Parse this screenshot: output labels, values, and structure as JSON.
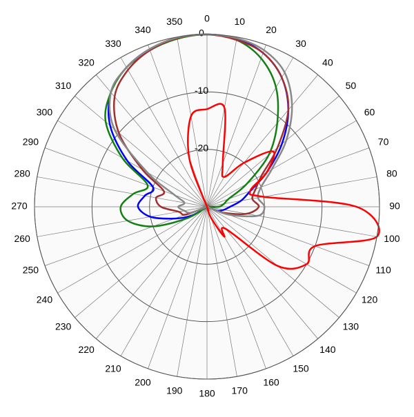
{
  "chart_data": {
    "type": "polar",
    "theta": [
      0,
      10,
      20,
      30,
      40,
      50,
      60,
      70,
      80,
      90,
      100,
      110,
      120,
      130,
      140,
      150,
      160,
      170,
      180,
      190,
      200,
      210,
      220,
      230,
      240,
      250,
      260,
      270,
      280,
      290,
      300,
      310,
      320,
      330,
      340,
      350
    ],
    "thetaticks": [
      0,
      10,
      20,
      30,
      40,
      50,
      60,
      70,
      80,
      90,
      100,
      110,
      120,
      130,
      140,
      150,
      160,
      170,
      180,
      190,
      200,
      210,
      220,
      230,
      240,
      250,
      260,
      270,
      280,
      290,
      300,
      310,
      320,
      330,
      340,
      350
    ],
    "rlim": [
      -30,
      0
    ],
    "rticks": [
      -20,
      -10,
      0
    ],
    "grid": true,
    "series": [
      {
        "color": "#0000ff",
        "values": [
          0,
          -0.3,
          -1.5,
          -4,
          -8,
          -13,
          -18,
          -22,
          -24,
          -26,
          -27,
          -28,
          -30,
          -30,
          -30,
          -30,
          -30,
          -30,
          -30,
          -30,
          -30,
          -30,
          -30,
          -30,
          -27,
          -24,
          -20,
          -18,
          -19,
          -20,
          -14,
          -8,
          -4,
          -2,
          -0.8,
          -0.2
        ]
      },
      {
        "color": "#138013",
        "values": [
          0,
          -0.5,
          -2.5,
          -6,
          -11,
          -16,
          -22,
          -26,
          -27,
          -28,
          -30,
          -30,
          -30,
          -30,
          -30,
          -30,
          -30,
          -30,
          -30,
          -30,
          -30,
          -30,
          -30,
          -30,
          -26,
          -20,
          -16,
          -15,
          -17,
          -19,
          -13,
          -7,
          -4,
          -2,
          -1,
          -0.3
        ]
      },
      {
        "color": "#a03030",
        "values": [
          0,
          -0.5,
          -1.5,
          -4,
          -8,
          -14,
          -19,
          -21,
          -22,
          -21,
          -23,
          -27,
          -30,
          -30,
          -30,
          -30,
          -30,
          -30,
          -30,
          -30,
          -30,
          -30,
          -30,
          -30,
          -30,
          -26,
          -25,
          -22,
          -21,
          -22,
          -17,
          -10,
          -5,
          -2.5,
          -1,
          -0.2
        ]
      },
      {
        "color": "#888888",
        "values": [
          0,
          -0.2,
          -1,
          -3,
          -7,
          -12,
          -17,
          -20,
          -21,
          -20,
          -21,
          -26,
          -30,
          -30,
          -30,
          -30,
          -30,
          -30,
          -30,
          -30,
          -30,
          -30,
          -30,
          -30,
          -30,
          -27,
          -26,
          -25,
          -26,
          -24,
          -18,
          -9,
          -4,
          -2,
          -0.8,
          -0.1
        ]
      },
      {
        "color": "#ff0000",
        "values": [
          -13,
          -12.5,
          -22,
          -24,
          -20,
          -15,
          -18,
          -22,
          -20,
          -4,
          0,
          -10,
          -10,
          -14,
          -25,
          -24,
          -28,
          -30,
          -30,
          -30,
          -30,
          -30,
          -30,
          -30,
          -30,
          -30,
          -30,
          -30,
          -30,
          -30,
          -30,
          -30,
          -30,
          -30,
          -21,
          -14
        ]
      }
    ]
  }
}
